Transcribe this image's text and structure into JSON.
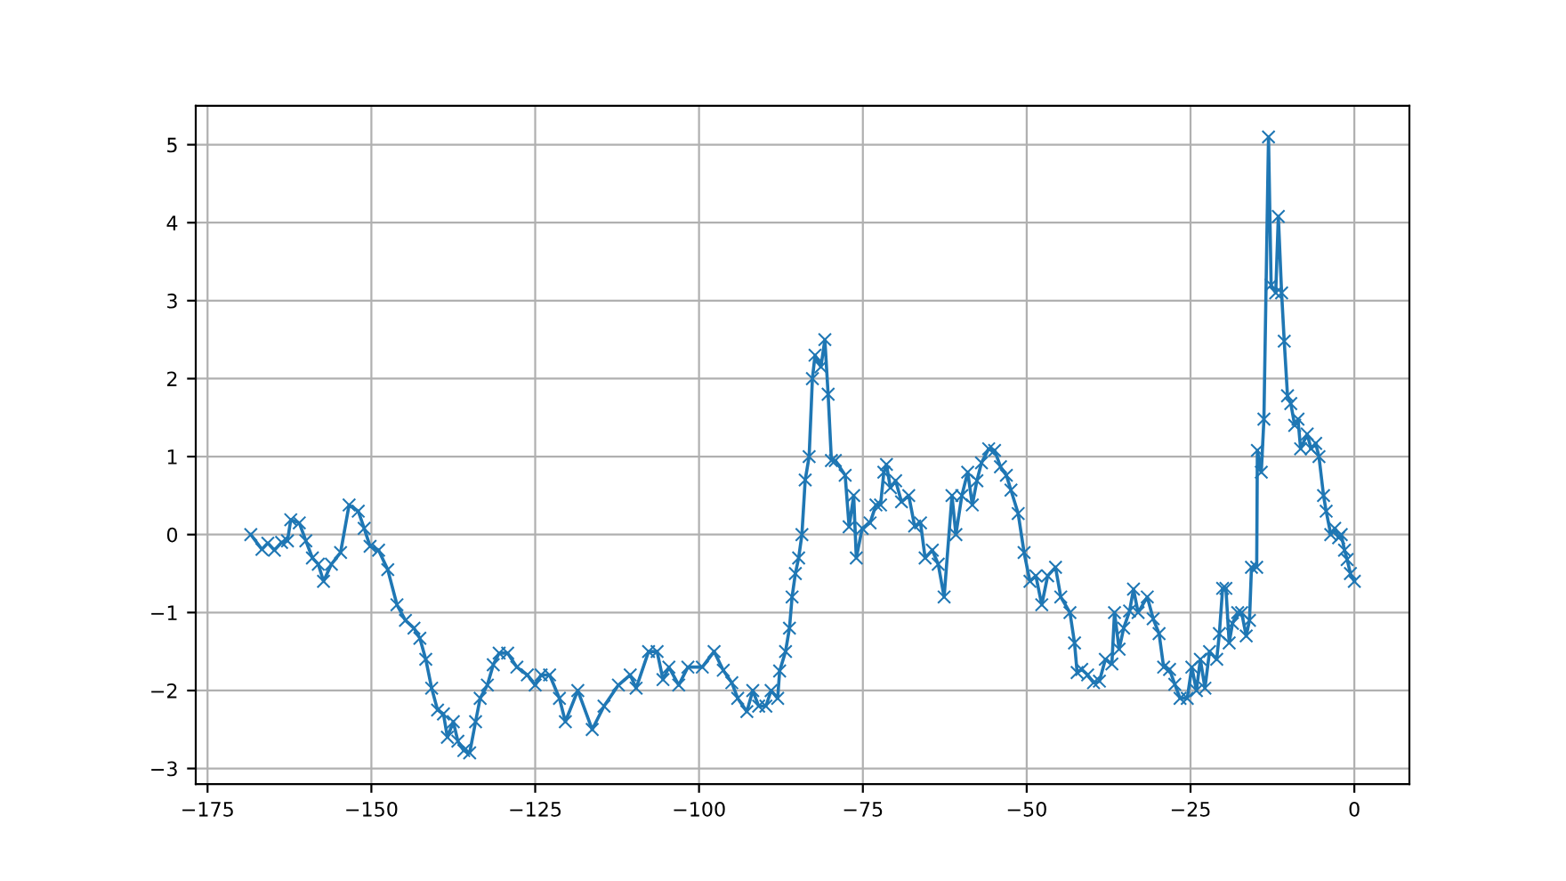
{
  "chart_data": {
    "type": "line",
    "marker": "cross",
    "line_style": "solid",
    "grid": true,
    "xlim": [
      -176.8,
      8.4
    ],
    "ylim": [
      -3.2,
      5.5
    ],
    "xticks": [
      {
        "value": -175,
        "label": "−175"
      },
      {
        "value": -150,
        "label": "−150"
      },
      {
        "value": -125,
        "label": "−125"
      },
      {
        "value": -100,
        "label": "−100"
      },
      {
        "value": -75,
        "label": "−75"
      },
      {
        "value": -50,
        "label": "−50"
      },
      {
        "value": -25,
        "label": "−25"
      },
      0
    ],
    "yticks": [
      {
        "value": -3,
        "label": "−3"
      },
      {
        "value": -2,
        "label": "−2"
      },
      {
        "value": -1,
        "label": "−1"
      },
      0,
      1,
      2,
      3,
      4,
      5
    ],
    "series": [
      {
        "color": "#1f77b4",
        "x": [
          -168.4,
          -166.7,
          -165.8,
          -164.8,
          -163.7,
          -162.8,
          -162.3,
          -161,
          -160,
          -159,
          -158.1,
          -157.3,
          -156.1,
          -154.7,
          -153.4,
          -152,
          -151.1,
          -150.2,
          -148.9,
          -147.5,
          -146.1,
          -144.8,
          -143.5,
          -142.6,
          -141.7,
          -140.8,
          -139.9,
          -139,
          -138.4,
          -137.5,
          -136.8,
          -135.9,
          -135,
          -134.1,
          -133.4,
          -132.3,
          -131.4,
          -130.5,
          -129.2,
          -127.8,
          -126.2,
          -125,
          -124.1,
          -122.8,
          -121.3,
          -120.4,
          -118.5,
          -116.3,
          -114.5,
          -112.3,
          -110.5,
          -109.6,
          -107.7,
          -106.4,
          -105.5,
          -104.6,
          -103.1,
          -101.7,
          -99.5,
          -97.7,
          -96.3,
          -95,
          -94.1,
          -92.7,
          -91.8,
          -90.9,
          -89.8,
          -89,
          -88,
          -87.7,
          -86.8,
          -86.2,
          -85.8,
          -85.3,
          -84.8,
          -84.3,
          -83.8,
          -83.2,
          -82.7,
          -82.3,
          -81.4,
          -80.8,
          -80.3,
          -79.8,
          -79.2,
          -77.7,
          -77.1,
          -76.4,
          -76,
          -75.1,
          -73.9,
          -73,
          -72.3,
          -71.8,
          -71.4,
          -70.8,
          -70,
          -69.1,
          -68,
          -67.1,
          -66.2,
          -65.5,
          -64.4,
          -63.5,
          -62.6,
          -61.4,
          -60.8,
          -59.9,
          -59,
          -58.3,
          -57.6,
          -56.9,
          -55.8,
          -54.9,
          -54,
          -53.1,
          -52.4,
          -51.3,
          -50.4,
          -49.5,
          -48.6,
          -47.7,
          -46.8,
          -45.6,
          -44.8,
          -43.4,
          -42.7,
          -42.3,
          -41.6,
          -40.7,
          -39.8,
          -38.9,
          -38,
          -37,
          -36.6,
          -35.9,
          -35.2,
          -34.3,
          -33.7,
          -33,
          -31.6,
          -30.7,
          -29.8,
          -29.1,
          -28.2,
          -27.4,
          -26.6,
          -25.5,
          -24.8,
          -24.1,
          -23.5,
          -22.8,
          -22.1,
          -21,
          -20.6,
          -20.1,
          -19.6,
          -19.1,
          -18.6,
          -17.8,
          -17.2,
          -16.5,
          -16,
          -15.7,
          -14.9,
          -14.8,
          -14.2,
          -13.8,
          -13.1,
          -12.7,
          -12,
          -11.6,
          -11.1,
          -10.7,
          -10.2,
          -9.7,
          -9.1,
          -8.6,
          -8.2,
          -7.2,
          -6.6,
          -5.9,
          -5.4,
          -4.7,
          -4.3,
          -3.6,
          -3,
          -2.4,
          -2,
          -1.5,
          -1.1,
          -0.6,
          0
        ],
        "values": [
          0.0,
          -0.19,
          -0.11,
          -0.2,
          -0.1,
          -0.08,
          0.19,
          0.15,
          -0.08,
          -0.3,
          -0.38,
          -0.6,
          -0.38,
          -0.23,
          0.38,
          0.3,
          0.08,
          -0.15,
          -0.2,
          -0.45,
          -0.9,
          -1.1,
          -1.2,
          -1.33,
          -1.6,
          -1.97,
          -2.25,
          -2.3,
          -2.6,
          -2.4,
          -2.65,
          -2.77,
          -2.8,
          -2.4,
          -2.1,
          -1.93,
          -1.67,
          -1.52,
          -1.52,
          -1.7,
          -1.8,
          -1.93,
          -1.8,
          -1.8,
          -2.1,
          -2.4,
          -2.0,
          -2.5,
          -2.2,
          -1.93,
          -1.8,
          -1.97,
          -1.5,
          -1.5,
          -1.86,
          -1.7,
          -1.93,
          -1.7,
          -1.7,
          -1.5,
          -1.74,
          -1.9,
          -2.1,
          -2.27,
          -2.0,
          -2.2,
          -2.2,
          -2.0,
          -2.1,
          -1.75,
          -1.5,
          -1.2,
          -0.8,
          -0.5,
          -0.3,
          0.0,
          0.7,
          1.0,
          2.0,
          2.3,
          2.15,
          2.5,
          1.8,
          0.95,
          0.95,
          0.76,
          0.1,
          0.5,
          -0.3,
          0.08,
          0.15,
          0.38,
          0.38,
          0.8,
          0.9,
          0.6,
          0.69,
          0.42,
          0.5,
          0.11,
          0.15,
          -0.3,
          -0.2,
          -0.38,
          -0.8,
          0.5,
          0.0,
          0.5,
          0.8,
          0.38,
          0.69,
          0.92,
          1.1,
          1.08,
          0.87,
          0.76,
          0.57,
          0.27,
          -0.23,
          -0.6,
          -0.53,
          -0.9,
          -0.53,
          -0.42,
          -0.8,
          -1.0,
          -1.39,
          -1.77,
          -1.73,
          -1.8,
          -1.9,
          -1.88,
          -1.6,
          -1.66,
          -1.0,
          -1.47,
          -1.2,
          -0.98,
          -0.7,
          -1.0,
          -0.8,
          -1.08,
          -1.27,
          -1.7,
          -1.73,
          -1.92,
          -2.1,
          -2.1,
          -1.7,
          -2.0,
          -1.6,
          -1.97,
          -1.5,
          -1.6,
          -1.27,
          -0.69,
          -0.69,
          -1.39,
          -1.14,
          -1.0,
          -1.0,
          -1.3,
          -1.1,
          -0.42,
          -0.42,
          1.08,
          0.8,
          1.48,
          5.1,
          3.2,
          3.1,
          4.08,
          3.1,
          2.48,
          1.78,
          1.68,
          1.4,
          1.48,
          1.1,
          1.29,
          1.1,
          1.17,
          1.0,
          0.5,
          0.3,
          0.0,
          0.08,
          -0.04,
          0.0,
          -0.2,
          -0.32,
          -0.5,
          -0.6
        ]
      }
    ]
  }
}
